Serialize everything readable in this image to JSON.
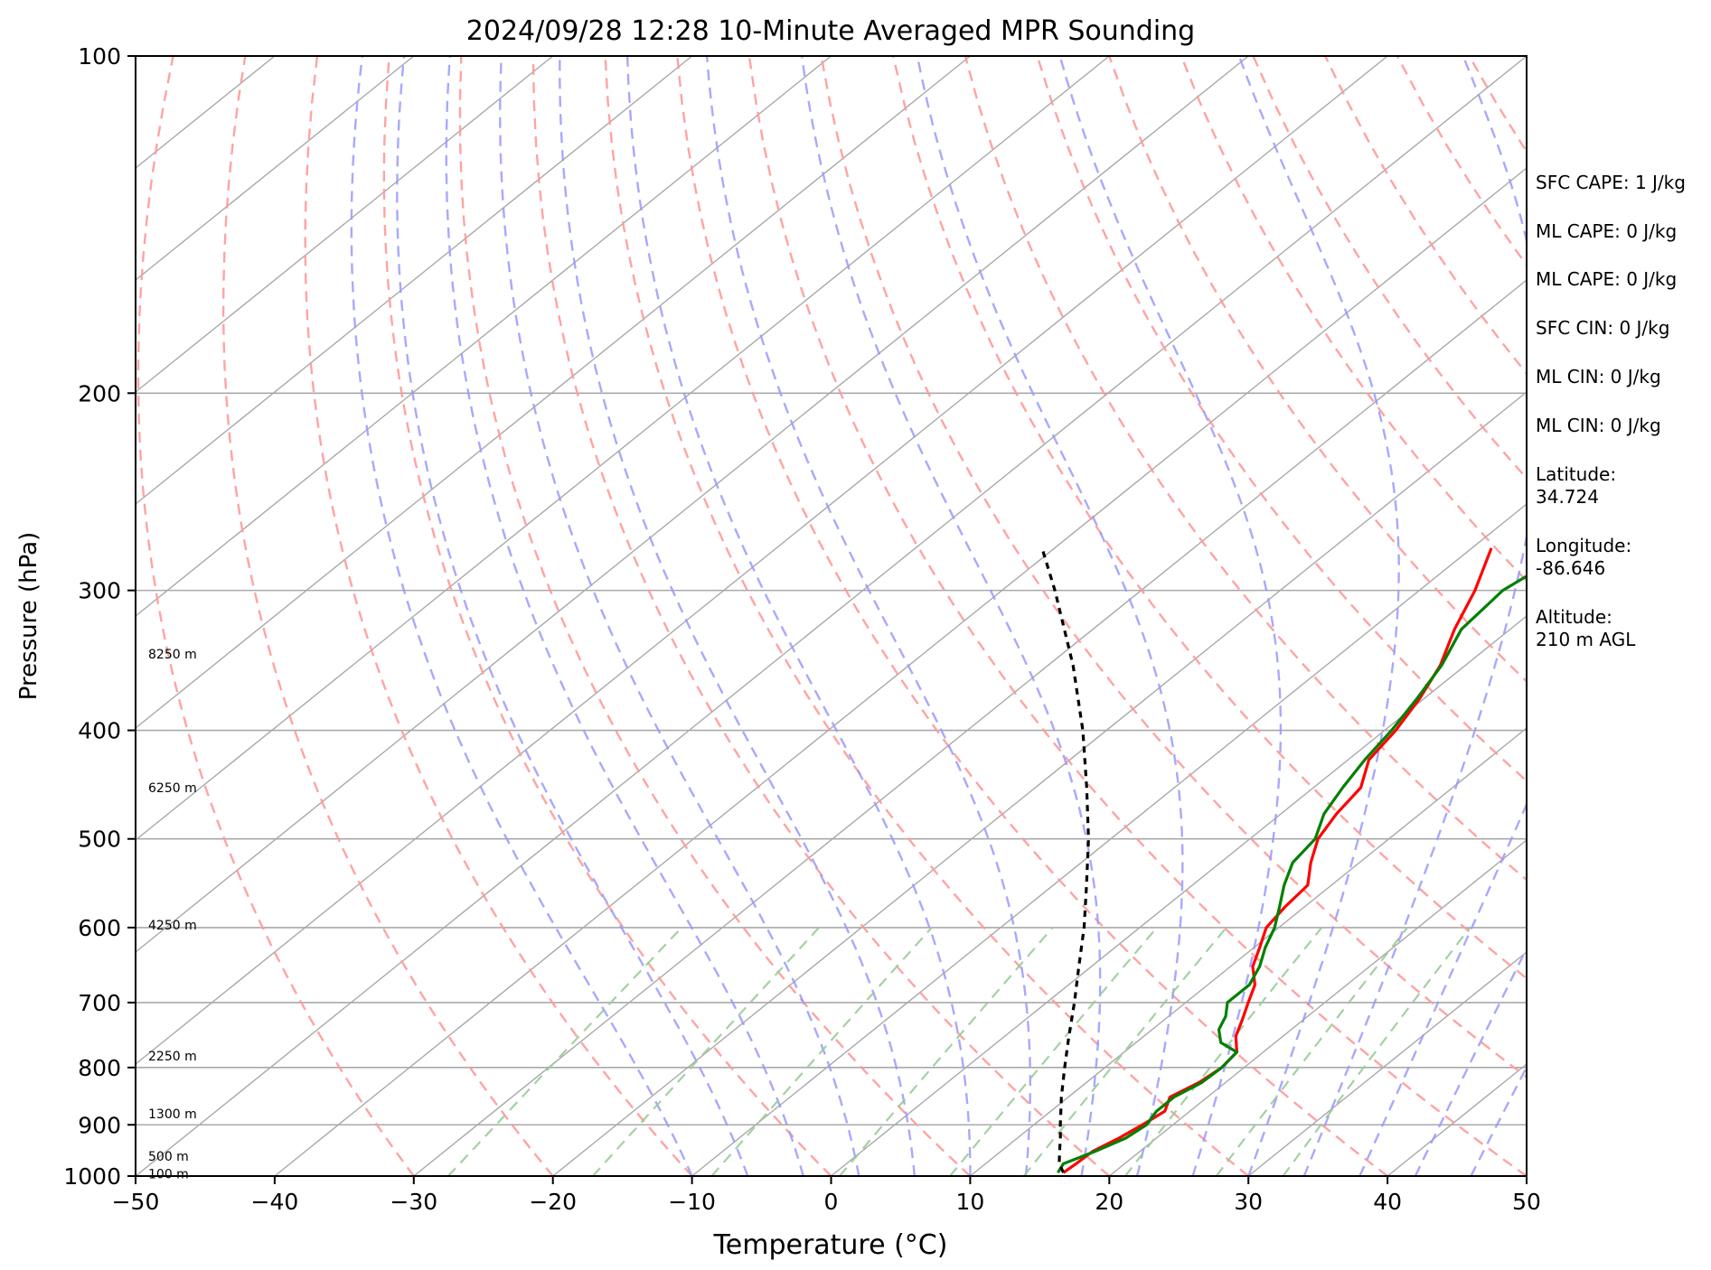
{
  "chart_data": {
    "type": "line",
    "title": "2024/09/28 12:28 10-Minute Averaged MPR Sounding",
    "xlabel": "Temperature (°C)",
    "ylabel": "Pressure (hPa)",
    "xlim": [
      -50,
      50
    ],
    "ylim": [
      1000,
      100
    ],
    "y_scale": "log",
    "skew_t": true,
    "x_ticks": [
      "−50",
      "−40",
      "−30",
      "−20",
      "−10",
      "0",
      "10",
      "20",
      "30",
      "40",
      "50"
    ],
    "y_ticks": [
      "100",
      "200",
      "300",
      "400",
      "500",
      "600",
      "700",
      "800",
      "900",
      "1000"
    ],
    "grid": true,
    "height_labels": [
      {
        "text": "8250 m",
        "p": 342
      },
      {
        "text": "6250 m",
        "p": 450
      },
      {
        "text": "4250 m",
        "p": 597
      },
      {
        "text": "2250 m",
        "p": 781
      },
      {
        "text": "1300 m",
        "p": 880
      },
      {
        "text": "500 m",
        "p": 960
      },
      {
        "text": "100 m",
        "p": 995
      }
    ],
    "series": [
      {
        "role": "temperature",
        "color": "#ff0000",
        "points": [
          [
            993,
            16.4
          ],
          [
            975,
            16.5
          ],
          [
            950,
            16.6
          ],
          [
            925,
            17.3
          ],
          [
            900,
            17.8
          ],
          [
            875,
            18.2
          ],
          [
            850,
            17.3
          ],
          [
            825,
            18.1
          ],
          [
            800,
            18.4
          ],
          [
            775,
            18.1
          ],
          [
            750,
            16.6
          ],
          [
            725,
            15.6
          ],
          [
            700,
            14.5
          ],
          [
            675,
            13.4
          ],
          [
            650,
            11.6
          ],
          [
            625,
            10.4
          ],
          [
            600,
            9.1
          ],
          [
            575,
            8.6
          ],
          [
            550,
            8.3
          ],
          [
            525,
            6.5
          ],
          [
            500,
            4.9
          ],
          [
            475,
            4.0
          ],
          [
            450,
            3.4
          ],
          [
            425,
            1.5
          ],
          [
            400,
            0.8
          ],
          [
            375,
            -0.3
          ],
          [
            350,
            -1.8
          ],
          [
            325,
            -4.0
          ],
          [
            300,
            -6.0
          ],
          [
            275,
            -8.6
          ]
        ]
      },
      {
        "role": "dewpoint",
        "color": "#008000",
        "points": [
          [
            993,
            16.0
          ],
          [
            975,
            15.6
          ],
          [
            950,
            16.8
          ],
          [
            925,
            17.8
          ],
          [
            900,
            18.1
          ],
          [
            875,
            17.6
          ],
          [
            850,
            17.6
          ],
          [
            825,
            18.3
          ],
          [
            800,
            18.4
          ],
          [
            775,
            18.1
          ],
          [
            760,
            16.1
          ],
          [
            740,
            14.8
          ],
          [
            720,
            14.1
          ],
          [
            700,
            13.0
          ],
          [
            675,
            13.0
          ],
          [
            650,
            12.1
          ],
          [
            625,
            10.8
          ],
          [
            600,
            9.7
          ],
          [
            575,
            8.2
          ],
          [
            550,
            6.6
          ],
          [
            525,
            5.2
          ],
          [
            500,
            4.7
          ],
          [
            475,
            3.1
          ],
          [
            450,
            2.1
          ],
          [
            425,
            1.2
          ],
          [
            400,
            0.5
          ],
          [
            375,
            -0.5
          ],
          [
            350,
            -1.7
          ],
          [
            325,
            -3.5
          ],
          [
            300,
            -4.0
          ],
          [
            275,
            -2.7
          ]
        ]
      },
      {
        "role": "parcel",
        "color": "#000000",
        "dash": "7,6",
        "points": [
          [
            993,
            16.4
          ],
          [
            975,
            15.3
          ],
          [
            950,
            14.2
          ],
          [
            925,
            13.1
          ],
          [
            900,
            11.9
          ],
          [
            850,
            9.5
          ],
          [
            800,
            7.1
          ],
          [
            750,
            4.6
          ],
          [
            700,
            2.0
          ],
          [
            650,
            -0.9
          ],
          [
            600,
            -4.0
          ],
          [
            550,
            -7.6
          ],
          [
            500,
            -11.6
          ],
          [
            450,
            -16.3
          ],
          [
            400,
            -21.7
          ],
          [
            350,
            -28.2
          ],
          [
            300,
            -36.2
          ],
          [
            275,
            -40.9
          ]
        ]
      }
    ]
  },
  "side_stats": [
    {
      "text": "SFC CAPE: 1 J/kg"
    },
    {
      "text": "ML CAPE: 0 J/kg"
    },
    {
      "text": "ML CAPE: 0 J/kg"
    },
    {
      "text": "SFC CIN: 0 J/kg"
    },
    {
      "text": "ML CIN: 0 J/kg"
    },
    {
      "text": "ML CIN: 0 J/kg"
    },
    {
      "line1": "Latitude:",
      "line2": "34.724"
    },
    {
      "line1": "Longitude:",
      "line2": "-86.646"
    },
    {
      "line1": "Altitude:",
      "line2": "210 m AGL"
    }
  ],
  "colors": {
    "temperature": "#ff0000",
    "dewpoint": "#008000",
    "parcel": "#000000",
    "dry_adiabat": "#ff9999",
    "moist_adiabat": "#9999ff",
    "mixing_ratio": "#99cc99",
    "isotherm": "#a9a9a9"
  }
}
